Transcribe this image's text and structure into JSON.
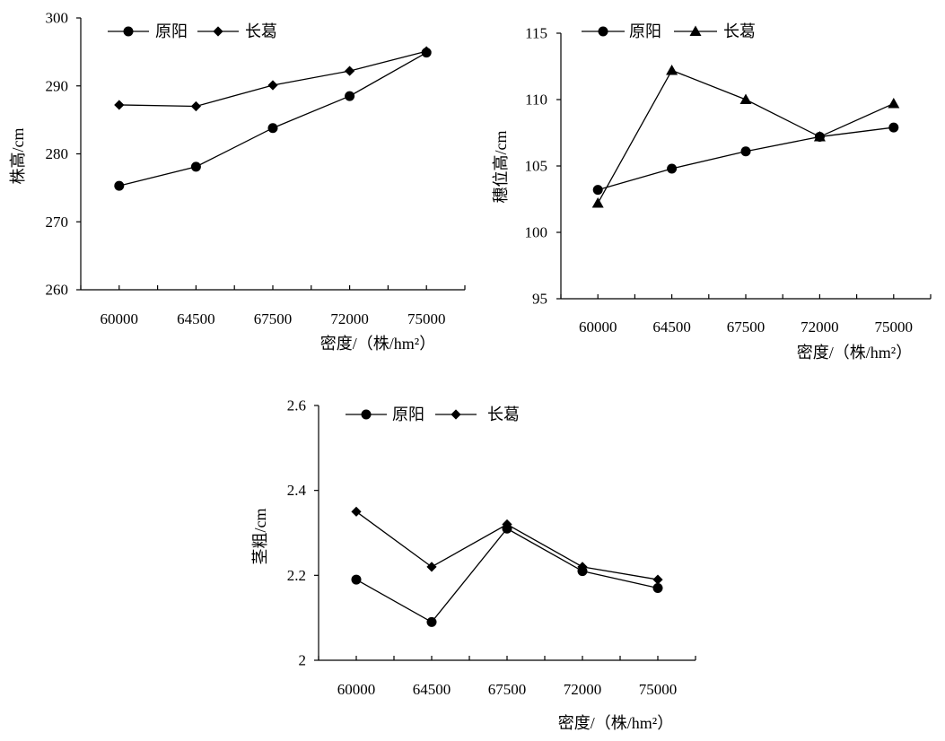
{
  "figure": {
    "background": "#ffffff",
    "ink_color": "#000000"
  },
  "chart_data": [
    {
      "type": "line",
      "categories": [
        "60000",
        "64500",
        "67500",
        "72000",
        "75000"
      ],
      "series": [
        {
          "name": "原阳",
          "marker": "circle",
          "values": [
            275.3,
            278.1,
            283.8,
            288.5,
            294.9
          ]
        },
        {
          "name": "长葛",
          "marker": "diamond",
          "values": [
            287.2,
            287.0,
            290.1,
            292.2,
            295.1
          ]
        }
      ],
      "ylabel": "株高/cm",
      "xlabel": "密度/（株/hm²）",
      "ylim": [
        260,
        300
      ],
      "yticks": [
        260,
        270,
        280,
        290,
        300
      ],
      "legend": "top-left",
      "grid": false
    },
    {
      "type": "line",
      "categories": [
        "60000",
        "64500",
        "67500",
        "72000",
        "75000"
      ],
      "series": [
        {
          "name": "原阳",
          "marker": "circle",
          "values": [
            103.2,
            104.8,
            106.1,
            107.2,
            107.9
          ]
        },
        {
          "name": "长葛",
          "marker": "triangle",
          "values": [
            102.2,
            112.2,
            110.0,
            107.2,
            109.7
          ]
        }
      ],
      "ylabel": "穗位高/cm",
      "xlabel": "密度/（株/hm²）",
      "ylim": [
        95,
        115
      ],
      "yticks": [
        95,
        100,
        105,
        110,
        115
      ],
      "legend": "top-left",
      "grid": false
    },
    {
      "type": "line",
      "categories": [
        "60000",
        "64500",
        "67500",
        "72000",
        "75000"
      ],
      "series": [
        {
          "name": "原阳",
          "marker": "circle",
          "values": [
            2.19,
            2.09,
            2.31,
            2.21,
            2.17
          ]
        },
        {
          "name": "长葛",
          "marker": "diamond",
          "values": [
            2.35,
            2.22,
            2.32,
            2.22,
            2.19
          ]
        }
      ],
      "ylabel": "茎粗/cm",
      "xlabel": "密度/（株/hm²）",
      "ylim": [
        2,
        2.6
      ],
      "yticks": [
        2,
        2.2,
        2.4,
        2.6
      ],
      "legend": "top-left",
      "grid": false
    }
  ]
}
